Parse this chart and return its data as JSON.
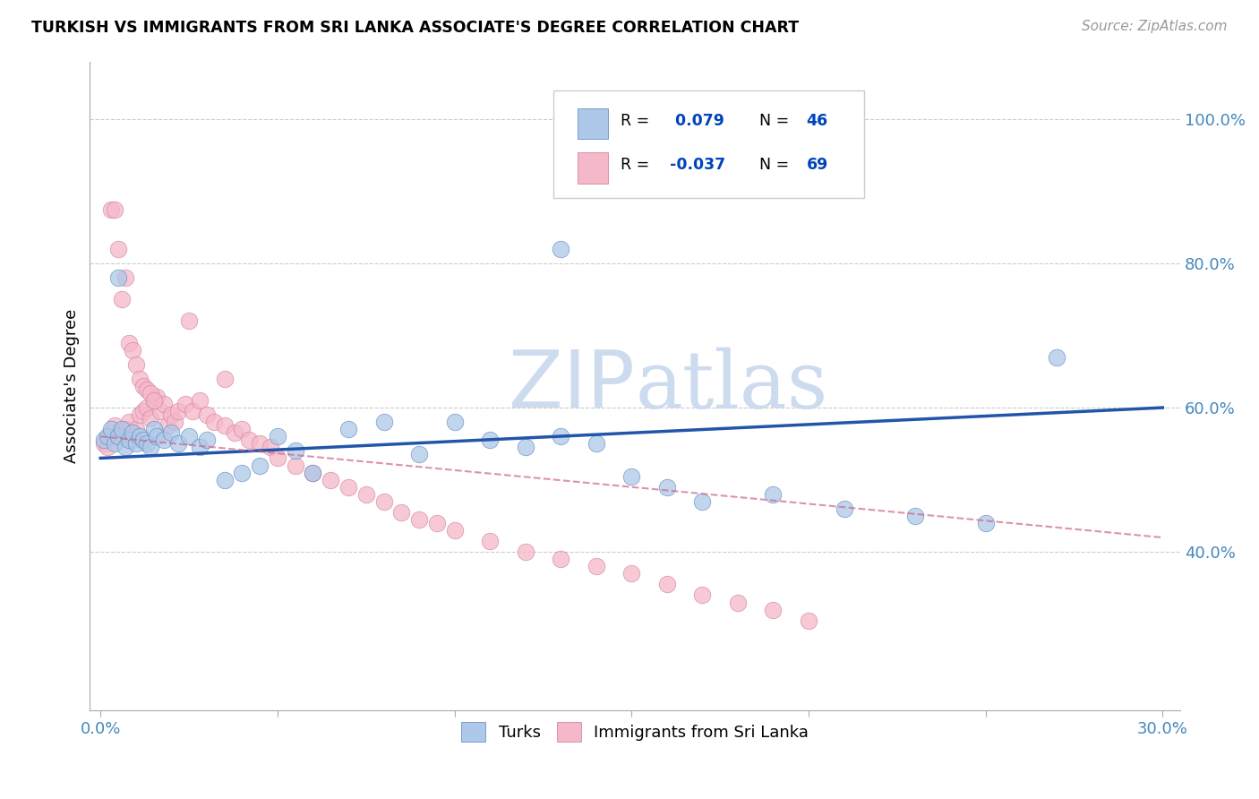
{
  "title": "TURKISH VS IMMIGRANTS FROM SRI LANKA ASSOCIATE'S DEGREE CORRELATION CHART",
  "source": "Source: ZipAtlas.com",
  "ylabel_label": "Associate's Degree",
  "turks_R": 0.079,
  "turks_N": 46,
  "srilanka_R": -0.037,
  "srilanka_N": 69,
  "turks_color": "#adc8e8",
  "turks_edge_color": "#5580bb",
  "turks_line_color": "#2255aa",
  "srilanka_color": "#f5b8c8",
  "srilanka_edge_color": "#cc7799",
  "srilanka_line_color": "#cc6688",
  "legend_R_color": "#0044bb",
  "legend_N_color": "#0044bb",
  "watermark_zip_color": "#c8d8ee",
  "watermark_atlas_color": "#c8d8ee",
  "turks_x": [
    0.001,
    0.002,
    0.003,
    0.004,
    0.005,
    0.006,
    0.007,
    0.008,
    0.009,
    0.01,
    0.011,
    0.012,
    0.013,
    0.014,
    0.015,
    0.016,
    0.018,
    0.02,
    0.022,
    0.025,
    0.028,
    0.03,
    0.035,
    0.04,
    0.045,
    0.05,
    0.055,
    0.06,
    0.07,
    0.08,
    0.09,
    0.1,
    0.11,
    0.12,
    0.13,
    0.14,
    0.15,
    0.16,
    0.17,
    0.19,
    0.21,
    0.23,
    0.25,
    0.27,
    0.13,
    0.005
  ],
  "turks_y": [
    0.555,
    0.56,
    0.57,
    0.55,
    0.56,
    0.57,
    0.545,
    0.555,
    0.565,
    0.55,
    0.56,
    0.555,
    0.55,
    0.545,
    0.57,
    0.56,
    0.555,
    0.565,
    0.55,
    0.56,
    0.545,
    0.555,
    0.5,
    0.51,
    0.52,
    0.56,
    0.54,
    0.51,
    0.57,
    0.58,
    0.535,
    0.58,
    0.555,
    0.545,
    0.56,
    0.55,
    0.505,
    0.49,
    0.47,
    0.48,
    0.46,
    0.45,
    0.44,
    0.67,
    0.82,
    0.78
  ],
  "srilanka_x": [
    0.001,
    0.002,
    0.003,
    0.004,
    0.005,
    0.006,
    0.007,
    0.008,
    0.009,
    0.01,
    0.011,
    0.012,
    0.013,
    0.014,
    0.015,
    0.016,
    0.017,
    0.018,
    0.019,
    0.02,
    0.021,
    0.022,
    0.024,
    0.026,
    0.028,
    0.03,
    0.032,
    0.035,
    0.038,
    0.04,
    0.042,
    0.045,
    0.048,
    0.05,
    0.055,
    0.06,
    0.065,
    0.07,
    0.075,
    0.08,
    0.085,
    0.09,
    0.095,
    0.1,
    0.11,
    0.12,
    0.13,
    0.14,
    0.15,
    0.16,
    0.17,
    0.18,
    0.19,
    0.2,
    0.003,
    0.004,
    0.005,
    0.006,
    0.007,
    0.008,
    0.009,
    0.01,
    0.011,
    0.012,
    0.013,
    0.014,
    0.015,
    0.025,
    0.035
  ],
  "srilanka_y": [
    0.55,
    0.545,
    0.565,
    0.575,
    0.56,
    0.565,
    0.57,
    0.58,
    0.555,
    0.57,
    0.59,
    0.595,
    0.6,
    0.585,
    0.61,
    0.615,
    0.595,
    0.605,
    0.575,
    0.59,
    0.58,
    0.595,
    0.605,
    0.595,
    0.61,
    0.59,
    0.58,
    0.575,
    0.565,
    0.57,
    0.555,
    0.55,
    0.545,
    0.53,
    0.52,
    0.51,
    0.5,
    0.49,
    0.48,
    0.47,
    0.455,
    0.445,
    0.44,
    0.43,
    0.415,
    0.4,
    0.39,
    0.38,
    0.37,
    0.355,
    0.34,
    0.33,
    0.32,
    0.305,
    0.875,
    0.875,
    0.82,
    0.75,
    0.78,
    0.69,
    0.68,
    0.66,
    0.64,
    0.63,
    0.625,
    0.62,
    0.61,
    0.72,
    0.64
  ],
  "turks_line_x": [
    0.0,
    0.3
  ],
  "turks_line_y": [
    0.53,
    0.6
  ],
  "srilanka_line_x": [
    0.0,
    0.3
  ],
  "srilanka_line_y": [
    0.56,
    0.42
  ],
  "xlim": [
    -0.003,
    0.305
  ],
  "ylim": [
    0.18,
    1.08
  ],
  "xticks": [
    0.0,
    0.05,
    0.1,
    0.15,
    0.2,
    0.25,
    0.3
  ],
  "yticks_right": [
    0.4,
    0.6,
    0.8,
    1.0
  ],
  "ytick_labels_right": [
    "40.0%",
    "60.0%",
    "80.0%",
    "100.0%"
  ],
  "yticks_grid": [
    0.4,
    0.6,
    0.8,
    1.0
  ],
  "tick_color": "#4488bb",
  "grid_color": "#cccccc",
  "marker_size": 180
}
